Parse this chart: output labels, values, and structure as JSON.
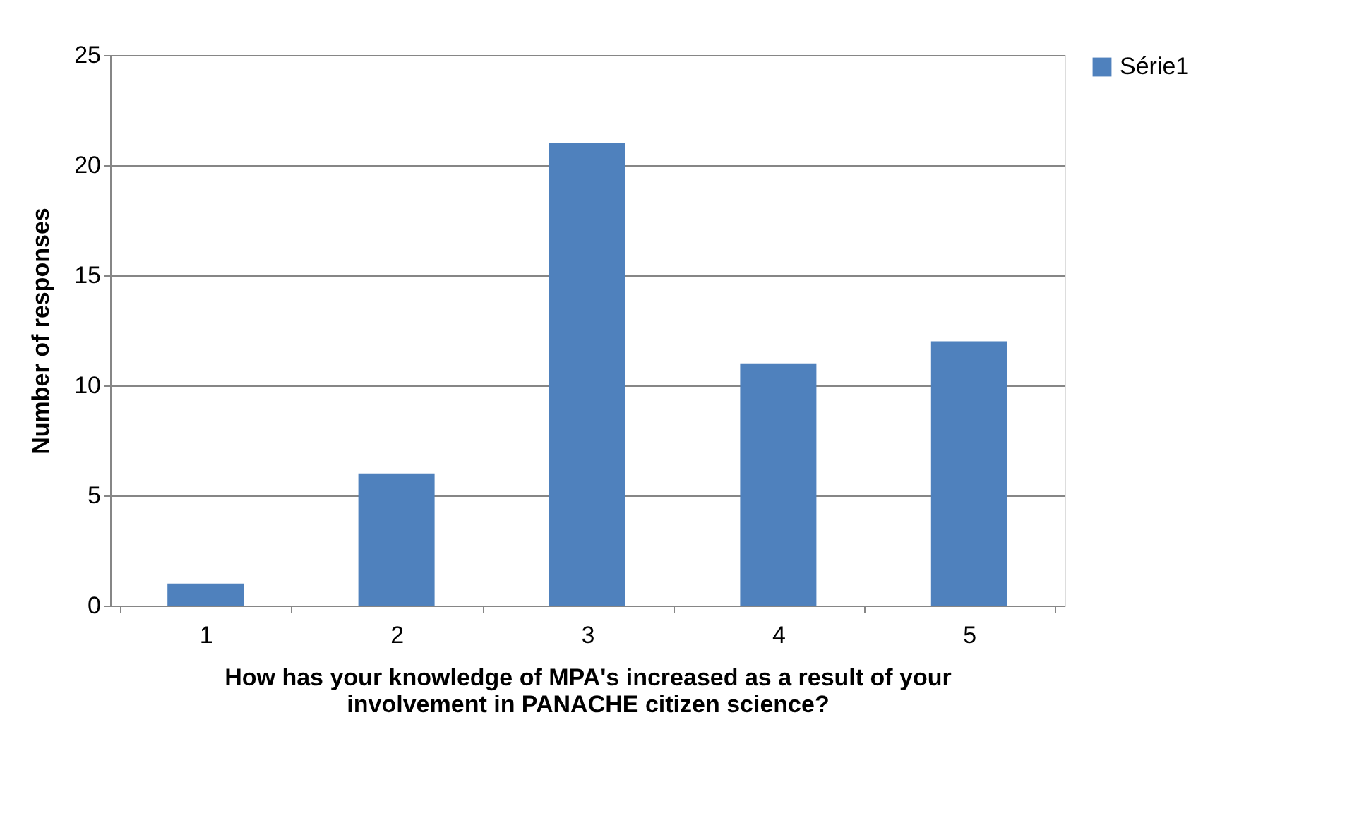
{
  "chart_data": {
    "type": "bar",
    "xlabel": "How has your knowledge of MPA's  increased as a result of your involvement in PANACHE citizen science?",
    "ylabel": "Number of responses",
    "categories": [
      "1",
      "2",
      "3",
      "4",
      "5"
    ],
    "series": [
      {
        "name": "Série1",
        "color": "#4f81bd",
        "values": [
          1,
          6,
          21,
          11,
          12
        ]
      }
    ],
    "ylim": [
      0,
      25
    ],
    "yticks": [
      0,
      5,
      10,
      15,
      20,
      25
    ],
    "grid": "y",
    "legend": "right"
  }
}
